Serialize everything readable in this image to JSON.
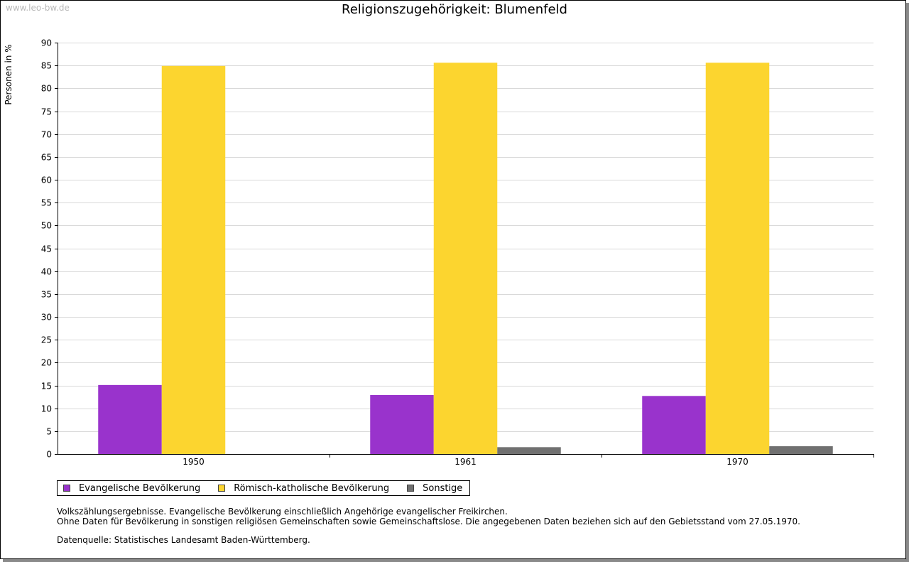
{
  "watermark": "www.leo-bw.de",
  "chart_data": {
    "type": "bar",
    "title": "Religionszugehörigkeit: Blumenfeld",
    "xlabel": "",
    "ylabel": "Personen in %",
    "ylim": [
      0,
      90
    ],
    "yticks": [
      0,
      5,
      10,
      15,
      20,
      25,
      30,
      35,
      40,
      45,
      50,
      55,
      60,
      65,
      70,
      75,
      80,
      85,
      90
    ],
    "grid": true,
    "legend_position": "bottom-left",
    "categories": [
      "1950",
      "1961",
      "1970"
    ],
    "series": [
      {
        "name": "Evangelische Bevölkerung",
        "color": "#9933cc",
        "values": [
          15.1,
          12.9,
          12.7
        ]
      },
      {
        "name": "Römisch-katholische Bevölkerung",
        "color": "#fcd52f",
        "values": [
          84.9,
          85.6,
          85.6
        ]
      },
      {
        "name": "Sonstige",
        "color": "#707070",
        "values": [
          0,
          1.5,
          1.7
        ]
      }
    ]
  },
  "notes": {
    "line1": "Volkszählungsergebnisse. Evangelische Bevölkerung einschließlich Angehörige evangelischer Freikirchen.",
    "line2": "Ohne Daten für Bevölkerung in sonstigen religiösen Gemeinschaften sowie Gemeinschaftslose. Die angegebenen Daten beziehen sich auf den Gebietsstand vom 27.05.1970.",
    "source": "Datenquelle: Statistisches Landesamt Baden-Württemberg."
  }
}
